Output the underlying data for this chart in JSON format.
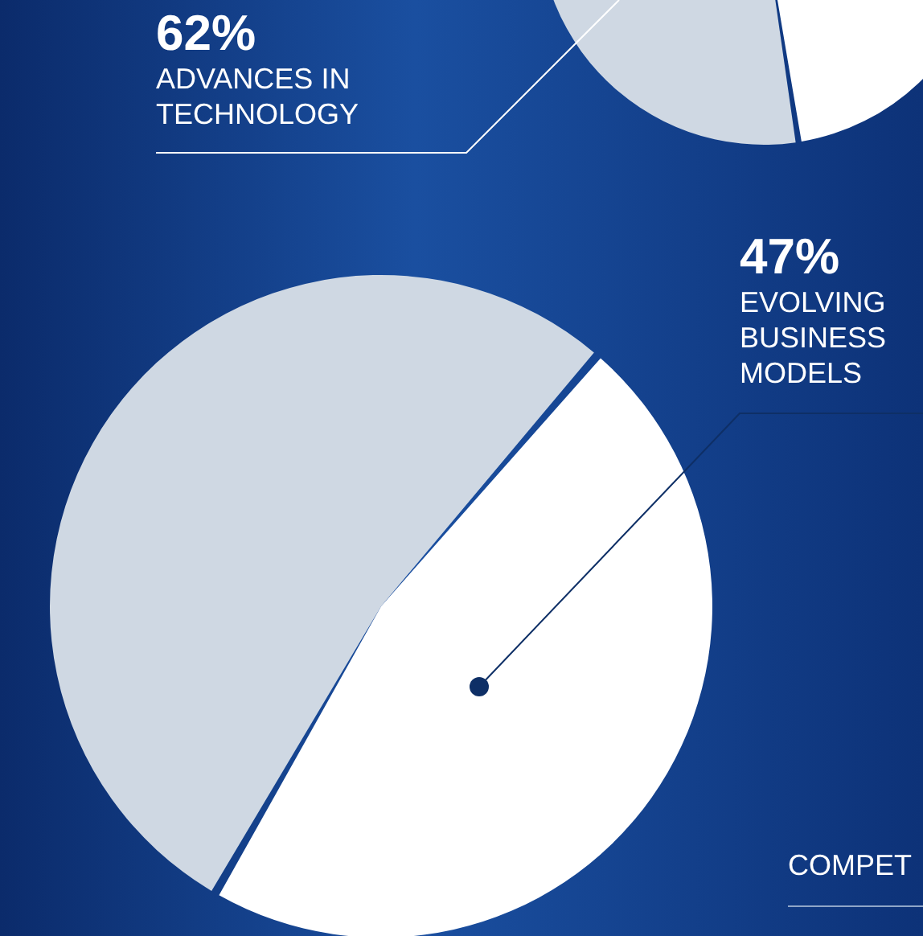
{
  "chart_data": [
    {
      "type": "pie",
      "categories": [
        "ADVANCES IN TECHNOLOGY",
        null
      ],
      "values": [
        62,
        38
      ],
      "colors": [
        "#cfd8e3",
        "#ffffff"
      ],
      "value_labels": [
        "62%",
        null
      ]
    },
    {
      "type": "pie",
      "categories": [
        null,
        "EVOLVING BUSINESS MODELS"
      ],
      "values": [
        53,
        47
      ],
      "colors": [
        "#cfd8e3",
        "#ffffff"
      ],
      "value_labels": [
        null,
        "47%"
      ],
      "annotations": [
        "COMPET"
      ]
    }
  ]
}
